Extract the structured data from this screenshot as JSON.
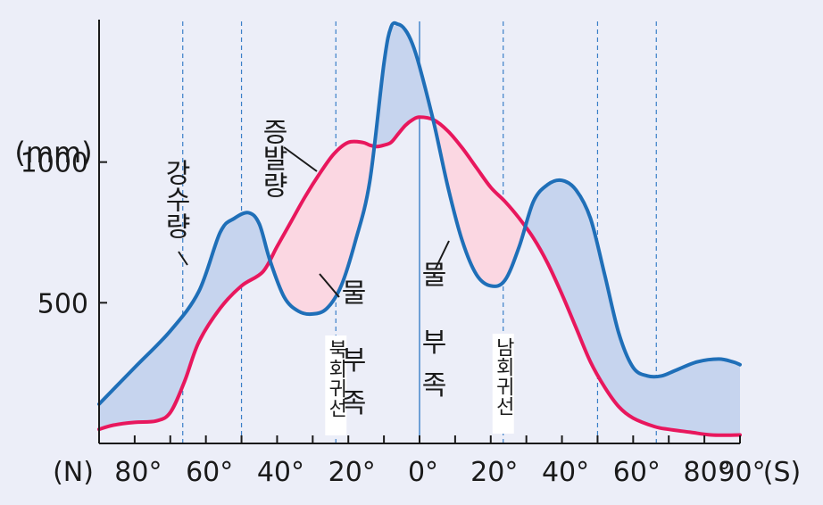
{
  "chart_data": {
    "type": "line",
    "ylabel": "(mm)",
    "yticks": [
      {
        "value": 1000,
        "label": "1000"
      },
      {
        "value": 500,
        "label": "500"
      }
    ],
    "ylim": [
      0,
      1500
    ],
    "xlim": [
      -90,
      90
    ],
    "xticks": [
      {
        "value": -80,
        "label": "80°"
      },
      {
        "value": -60,
        "label": "60°"
      },
      {
        "value": -40,
        "label": "40°"
      },
      {
        "value": -20,
        "label": "20°"
      },
      {
        "value": 0,
        "label": "0°"
      },
      {
        "value": 20,
        "label": "20°"
      },
      {
        "value": 40,
        "label": "40°"
      },
      {
        "value": 60,
        "label": "60°"
      },
      {
        "value": 80,
        "label": "80°"
      },
      {
        "value": 90,
        "label": "90°"
      }
    ],
    "x_prefix": "(N)",
    "x_suffix": "(S)",
    "reference_lines": [
      {
        "value": -66.5
      },
      {
        "value": -50
      },
      {
        "value": -23.5,
        "label": "북회귀선"
      },
      {
        "value": 0
      },
      {
        "value": 23.5,
        "label": "남회귀선"
      },
      {
        "value": 50
      },
      {
        "value": 66.5
      }
    ],
    "series": [
      {
        "name": "강수량",
        "color": "#1f6fb8",
        "x": [
          -90,
          -80,
          -70,
          -62,
          -56,
          -52,
          -48,
          -45,
          -42,
          -38,
          -34,
          -30,
          -26,
          -22,
          -18,
          -14,
          -10,
          -8,
          -6,
          -4,
          -2,
          0,
          4,
          8,
          12,
          16,
          20,
          24,
          28,
          32,
          36,
          40,
          44,
          48,
          52,
          56,
          60,
          64,
          68,
          72,
          78,
          84,
          88,
          90
        ],
        "y": [
          140,
          270,
          400,
          540,
          750,
          800,
          820,
          780,
          650,
          520,
          470,
          460,
          480,
          560,
          720,
          930,
          1350,
          1480,
          1490,
          1470,
          1420,
          1340,
          1140,
          910,
          720,
          600,
          560,
          580,
          700,
          860,
          920,
          935,
          900,
          800,
          600,
          390,
          270,
          240,
          240,
          260,
          290,
          300,
          290,
          280
        ]
      },
      {
        "name": "증발량",
        "color": "#e8175d",
        "x": [
          -90,
          -86,
          -80,
          -74,
          -70,
          -66,
          -62,
          -56,
          -50,
          -44,
          -40,
          -36,
          -32,
          -28,
          -24,
          -20,
          -16,
          -14,
          -12,
          -10,
          -8,
          -6,
          -4,
          -2,
          0,
          4,
          8,
          12,
          16,
          20,
          24,
          28,
          32,
          36,
          40,
          44,
          48,
          52,
          56,
          60,
          66,
          70,
          76,
          82,
          90
        ],
        "y": [
          50,
          65,
          75,
          80,
          110,
          220,
          360,
          480,
          560,
          610,
          700,
          790,
          880,
          960,
          1030,
          1070,
          1070,
          1060,
          1055,
          1060,
          1070,
          1100,
          1130,
          1150,
          1160,
          1150,
          1110,
          1050,
          980,
          910,
          860,
          800,
          730,
          640,
          530,
          410,
          290,
          200,
          130,
          90,
          60,
          50,
          40,
          30,
          30
        ]
      }
    ],
    "annotations": [
      "증발량",
      "강수량",
      "물 부족",
      "물 부족"
    ]
  }
}
